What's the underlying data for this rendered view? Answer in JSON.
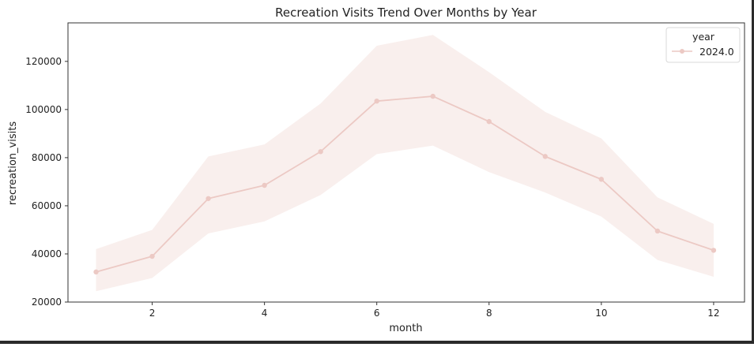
{
  "chart_data": {
    "type": "line",
    "title": "Recreation Visits Trend Over Months by Year",
    "xlabel": "month",
    "ylabel": "recreation_visits",
    "xlim": [
      0.5,
      12.55
    ],
    "ylim": [
      20000,
      136000
    ],
    "xticks": [
      2,
      4,
      6,
      8,
      10,
      12
    ],
    "yticks": [
      20000,
      40000,
      60000,
      80000,
      100000,
      120000
    ],
    "grid": false,
    "legend": {
      "title": "year",
      "placement": "top-right"
    },
    "series": [
      {
        "name": "2024.0",
        "color": "#ecc9c4",
        "band_color": "#f9efed",
        "x": [
          1,
          2,
          3,
          4,
          5,
          6,
          7,
          8,
          9,
          10,
          11,
          12
        ],
        "y": [
          32500,
          39000,
          63000,
          68500,
          82500,
          103500,
          105500,
          95000,
          80500,
          71000,
          49500,
          41500
        ],
        "ci_upper": [
          42000,
          50000,
          80500,
          85500,
          102500,
          126500,
          131000,
          115500,
          99000,
          88000,
          63500,
          52500
        ],
        "ci_lower": [
          24500,
          30000,
          48500,
          53500,
          64500,
          81500,
          85000,
          74000,
          65500,
          55500,
          37500,
          30500
        ]
      }
    ]
  }
}
